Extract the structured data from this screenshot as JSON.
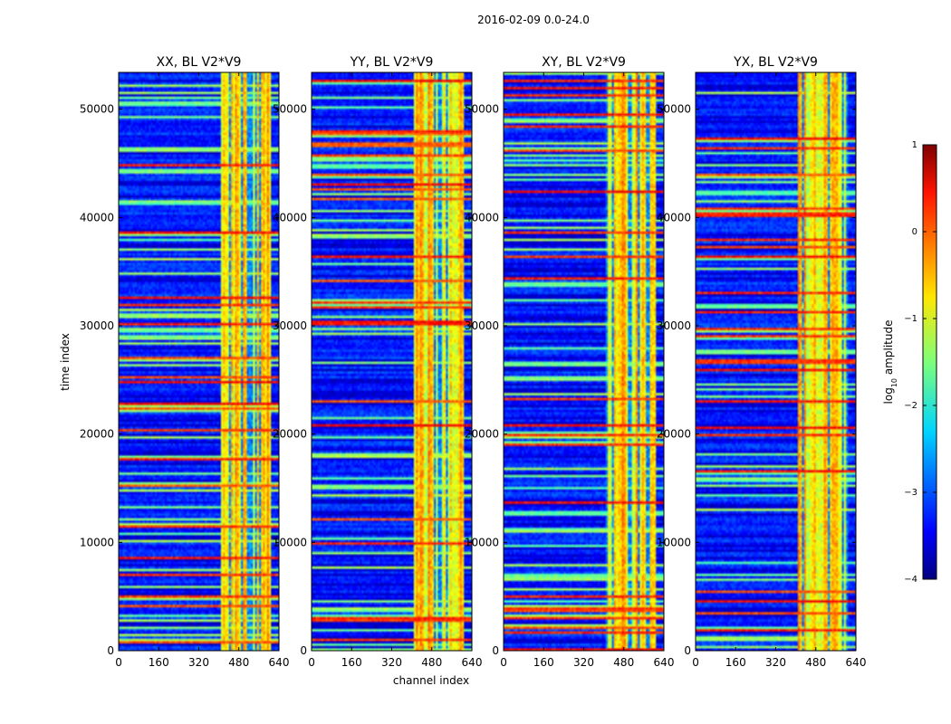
{
  "chart_data": {
    "type": "heatmap",
    "title": "2016-02-09 0.0-24.0",
    "xlabel": "channel index",
    "ylabel": "time index",
    "xlim": [
      0,
      640
    ],
    "ylim": [
      0,
      53400
    ],
    "xticks": [
      0,
      160,
      320,
      480,
      640
    ],
    "yticks": [
      0,
      10000,
      20000,
      30000,
      40000,
      50000
    ],
    "colormap": "jet",
    "colorbar": {
      "label": "log10 amplitude",
      "label_base": "log",
      "label_sub": "10",
      "label_rest": " amplitude",
      "range": [
        -4,
        1
      ],
      "ticks": [
        1,
        0,
        -1,
        -2,
        -3,
        -4
      ],
      "tick_labels": [
        "1",
        "0",
        "−1",
        "−2",
        "−3",
        "−4"
      ]
    },
    "bright_band_channels": [
      405,
      600
    ],
    "panels": [
      {
        "title": "XX, BL V2*V9",
        "polarization": "XX",
        "baseline": "V2*V9"
      },
      {
        "title": "YY, BL V2*V9",
        "polarization": "YY",
        "baseline": "V2*V9"
      },
      {
        "title": "XY, BL V2*V9",
        "polarization": "XY",
        "baseline": "V2*V9"
      },
      {
        "title": "YX, BL V2*V9",
        "polarization": "YX",
        "baseline": "V2*V9"
      }
    ]
  }
}
